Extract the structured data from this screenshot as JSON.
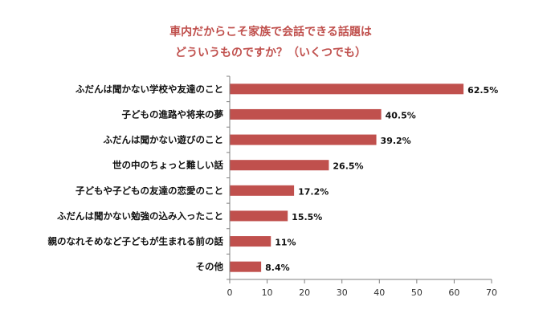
{
  "chart_data": {
    "type": "bar",
    "orientation": "horizontal",
    "title_lines": [
      "車内だからこそ家族で会話できる話題は",
      "どういうものですか？（いくつでも）"
    ],
    "categories": [
      "ふだんは聞かない学校や友達のこと",
      "子どもの進路や将来の夢",
      "ふだんは聞かない遊びのこと",
      "世の中のちょっと難しい話",
      "子どもや子どもの友達の恋愛のこと",
      "ふだんは聞かない勉強の込み入ったこと",
      "親のなれそめなど子どもが生まれる前の話",
      "その他"
    ],
    "values": [
      62.5,
      40.5,
      39.2,
      26.5,
      17.2,
      15.5,
      11,
      8.4
    ],
    "value_labels": [
      "62.5%",
      "40.5%",
      "39.2%",
      "26.5%",
      "17.2%",
      "15.5%",
      "11%",
      "8.4%"
    ],
    "xlim": [
      0,
      70
    ],
    "xticks": [
      0,
      10,
      20,
      30,
      40,
      50,
      60,
      70
    ],
    "grid": false,
    "colors": {
      "bar": "#c0504d",
      "title": "#c0504d",
      "axis": "#7f7f7f"
    }
  }
}
